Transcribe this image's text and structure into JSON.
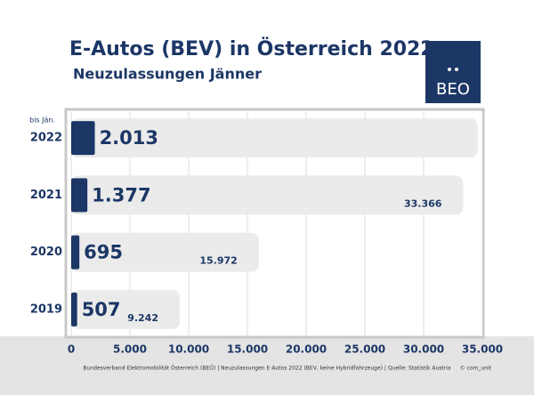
{
  "chart_data": {
    "type": "bar",
    "orientation": "horizontal",
    "title": "E-Autos (BEV) in Österreich 2022",
    "subtitle": "Neuzulassungen Jänner",
    "annotation": "bis Jän.",
    "categories": [
      "2022",
      "2021",
      "2020",
      "2019"
    ],
    "series": [
      {
        "color": "#ebebeb",
        "values": [
          34600,
          33366,
          15972,
          9242
        ],
        "value_labels": [
          null,
          "33.366",
          "15.972",
          "9.242"
        ]
      },
      {
        "color": "#1c3766",
        "values": [
          2013,
          1377,
          695,
          507
        ],
        "value_labels": [
          "2.013",
          "1.377",
          "695",
          "507"
        ]
      }
    ],
    "xlim": [
      0,
      35000
    ],
    "xticks": [
      0,
      {
        "value": 5000,
        "label": "5.000"
      },
      {
        "value": 10000,
        "label": "10.000"
      },
      {
        "value": 15000,
        "label": "15.000"
      },
      {
        "value": 20000,
        "label": "20.000"
      },
      {
        "value": 25000,
        "label": "25.000"
      },
      {
        "value": 30000,
        "label": "30.000"
      },
      {
        "value": 35000,
        "label": "35.000"
      }
    ],
    "grid": true
  },
  "logo": {
    "text": "BEO"
  },
  "footer": {
    "source": "Bundesverband Elektromobilität Österreich (BEÖ) | Neuzulassungen E-Autos 2022 (BEV, keine Hybridfahrzeuge) | Quelle: Statistik Austria",
    "credit": "© com_unit"
  }
}
